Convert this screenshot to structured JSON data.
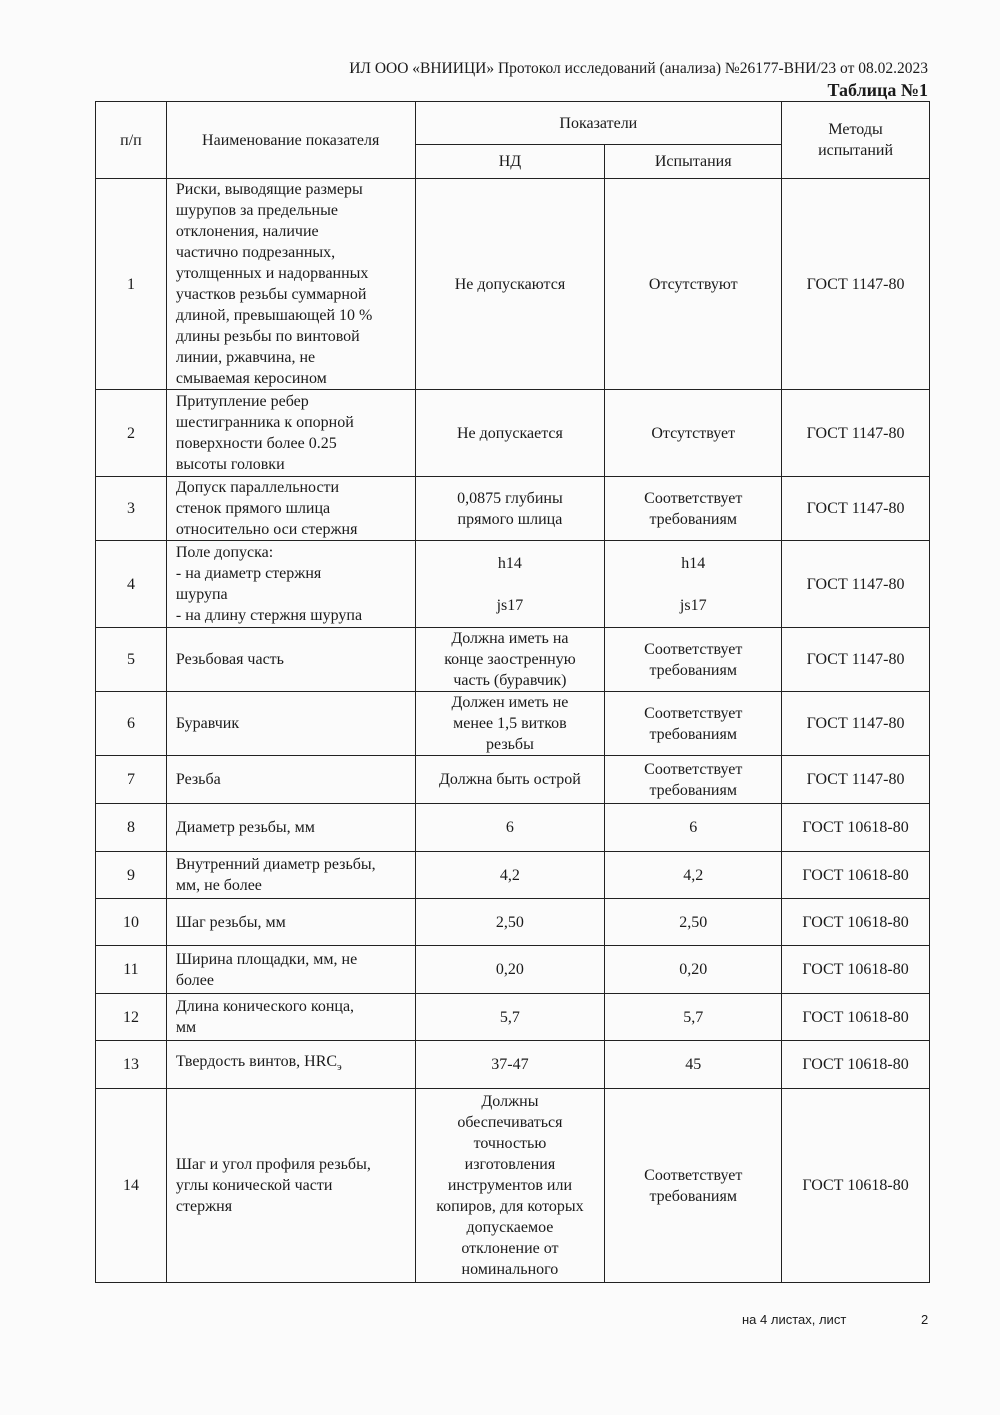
{
  "header": {
    "line": "ИЛ ООО «ВНИИЦИ» Протокол исследований (анализа) №26177-ВНИ/23 от 08.02.2023",
    "table_title": "Таблица №1"
  },
  "columns": {
    "num": "п/п",
    "name": "Наименование показателя",
    "indicators": "Показатели",
    "nd": "НД",
    "test": "Испытания",
    "methods": "Методы\nиспытаний"
  },
  "rows": [
    {
      "n": "1",
      "name": "Риски, выводящие размеры\nшурупов за предельные\nотклонения, наличие\nчастично подрезанных,\nутолщенных и надорванных\nучастков резьбы суммарной\nдлиной, превышающей 10 %\nдлины резьбы по винтовой\nлинии, ржавчина, не\nсмываемая керосином",
      "nd": "Не допускаются",
      "test": "Отсутствуют",
      "method": "ГОСТ 1147-80"
    },
    {
      "n": "2",
      "name": "Притупление ребер\nшестигранника к опорной\nповерхности более 0.25\nвысоты головки",
      "nd": "Не допускается",
      "test": "Отсутствует",
      "method": "ГОСТ 1147-80"
    },
    {
      "n": "3",
      "name": "Допуск параллельности\nстенок прямого шлица\nотносительно оси стержня",
      "nd": "0,0875 глубины\nпрямого шлица",
      "test": "Соответствует\nтребованиям",
      "method": "ГОСТ 1147-80"
    },
    {
      "n": "4",
      "name": "Поле допуска:\n- на диаметр стержня\nшурупа\n- на длину стержня шурупа",
      "nd": "h14\n\njs17",
      "test": "h14\n\njs17",
      "method": "ГОСТ 1147-80"
    },
    {
      "n": "5",
      "name": "Резьбовая часть",
      "nd": "Должна иметь на\nконце заостренную\nчасть (буравчик)",
      "test": "Соответствует\nтребованиям",
      "method": "ГОСТ 1147-80"
    },
    {
      "n": "6",
      "name": "Буравчик",
      "nd": "Должен иметь не\nменее 1,5 витков\nрезьбы",
      "test": "Соответствует\nтребованиям",
      "method": "ГОСТ 1147-80"
    },
    {
      "n": "7",
      "name": "Резьба",
      "nd": "Должна быть острой",
      "test": "Соответствует\nтребованиям",
      "method": "ГОСТ 1147-80"
    },
    {
      "n": "8",
      "name": "Диаметр резьбы, мм",
      "nd": "6",
      "test": "6",
      "method": "ГОСТ 10618-80"
    },
    {
      "n": "9",
      "name": "Внутренний диаметр резьбы,\nмм, не более",
      "nd": "4,2",
      "test": "4,2",
      "method": "ГОСТ 10618-80"
    },
    {
      "n": "10",
      "name": "Шаг резьбы, мм",
      "nd": "2,50",
      "test": "2,50",
      "method": "ГОСТ 10618-80"
    },
    {
      "n": "11",
      "name": "Ширина площадки, мм, не\nболее",
      "nd": "0,20",
      "test": "0,20",
      "method": "ГОСТ 10618-80"
    },
    {
      "n": "12",
      "name": "Длина конического конца,\nмм",
      "nd": "5,7",
      "test": "5,7",
      "method": "ГОСТ 10618-80"
    },
    {
      "n": "13",
      "name": "Твердость винтов, HRC",
      "name_sub": "э",
      "nd": "37-47",
      "test": "45",
      "method": "ГОСТ 10618-80"
    },
    {
      "n": "14",
      "name": "Шаг и угол профиля резьбы,\nуглы конической части\nстержня",
      "nd": "Должны\nобеспечиваться\nточностью\nизготовления\nинструментов или\nкопиров, для которых\nдопускаемое\nотклонение от\nноминального",
      "test": "Соответствует\nтребованиям",
      "method": "ГОСТ 10618-80"
    }
  ],
  "footer": {
    "sheets": "на 4  листах, лист",
    "page": "2"
  }
}
